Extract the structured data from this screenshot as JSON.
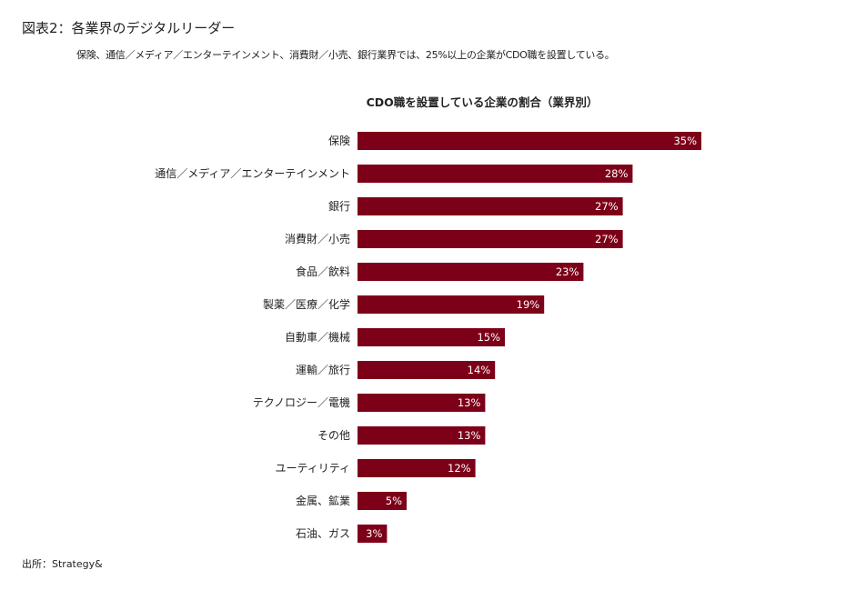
{
  "title": "図表2：各業界のデジタルリーダー",
  "subtitle": "保険、通信／メディア／エンターテインメント、消費財／小売、銀行業界では、25%以上の企業がCDO職を設置している。",
  "source": "出所：Strategy&",
  "colors": {
    "bar": "#7d0019",
    "label": "#ffffff"
  },
  "chart_data": {
    "type": "bar",
    "orientation": "horizontal",
    "title": "CDO職を設置している企業の割合（業界別）",
    "categories": [
      "保険",
      "通信／メディア／エンターテインメント",
      "銀行",
      "消費財／小売",
      "食品／飲料",
      "製薬／医療／化学",
      "自動車／機械",
      "運輸／旅行",
      "テクノロジー／電機",
      "その他",
      "ユーティリティ",
      "金属、鉱業",
      "石油、ガス"
    ],
    "values": [
      35,
      28,
      27,
      27,
      23,
      19,
      15,
      14,
      13,
      13,
      12,
      5,
      3
    ],
    "labels": [
      "35%",
      "28%",
      "27%",
      "27%",
      "23%",
      "19%",
      "15%",
      "14%",
      "13%",
      "13%",
      "12%",
      "5%",
      "3%"
    ],
    "unit": "%",
    "grid": false
  }
}
